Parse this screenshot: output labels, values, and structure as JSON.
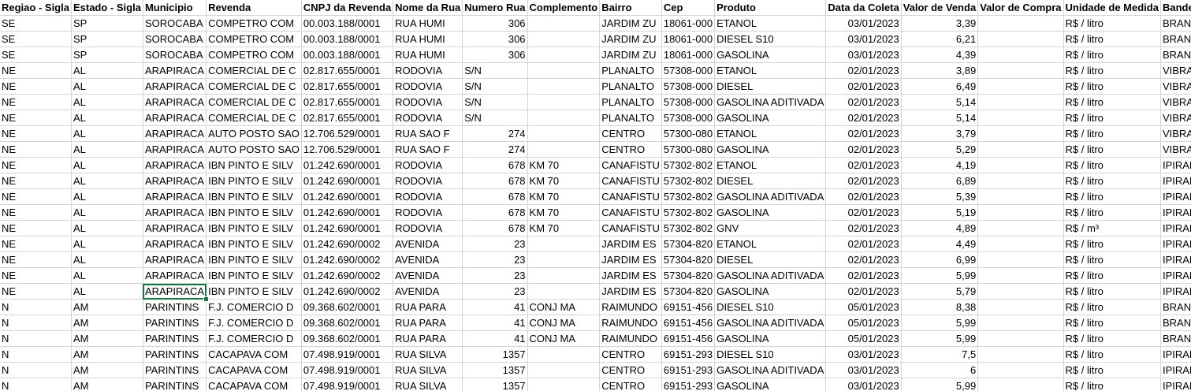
{
  "columns": [
    {
      "key": "regiao",
      "label": "Regiao - Sigla"
    },
    {
      "key": "estado",
      "label": "Estado - Sigla"
    },
    {
      "key": "municipio",
      "label": "Municipio"
    },
    {
      "key": "revenda",
      "label": "Revenda"
    },
    {
      "key": "cnpj",
      "label": "CNPJ da Revenda"
    },
    {
      "key": "nome_rua",
      "label": "Nome da Rua"
    },
    {
      "key": "numero",
      "label": "Numero Rua"
    },
    {
      "key": "complemento",
      "label": "Complemento"
    },
    {
      "key": "bairro",
      "label": "Bairro"
    },
    {
      "key": "cep",
      "label": "Cep"
    },
    {
      "key": "produto",
      "label": "Produto"
    },
    {
      "key": "data",
      "label": "Data da Coleta"
    },
    {
      "key": "venda",
      "label": "Valor de Venda"
    },
    {
      "key": "compra",
      "label": "Valor de Compra"
    },
    {
      "key": "unidade",
      "label": "Unidade de Medida"
    },
    {
      "key": "bandeira",
      "label": "Bandeira"
    }
  ],
  "rows": [
    [
      "SE",
      "SP",
      "SOROCABA",
      "COMPETRO COM",
      "00.003.188/0001",
      "RUA HUMI",
      "306",
      "",
      "JARDIM ZU",
      "18061-000",
      "ETANOL",
      "03/01/2023",
      "3,39",
      "",
      "R$ / litro",
      "BRANCA"
    ],
    [
      "SE",
      "SP",
      "SOROCABA",
      "COMPETRO COM",
      "00.003.188/0001",
      "RUA HUMI",
      "306",
      "",
      "JARDIM ZU",
      "18061-000",
      "DIESEL S10",
      "03/01/2023",
      "6,21",
      "",
      "R$ / litro",
      "BRANCA"
    ],
    [
      "SE",
      "SP",
      "SOROCABA",
      "COMPETRO COM",
      "00.003.188/0001",
      "RUA HUMI",
      "306",
      "",
      "JARDIM ZU",
      "18061-000",
      "GASOLINA",
      "03/01/2023",
      "4,39",
      "",
      "R$ / litro",
      "BRANCA"
    ],
    [
      "NE",
      "AL",
      "ARAPIRACA",
      "COMERCIAL DE C",
      "02.817.655/0001",
      "RODOVIA",
      "S/N",
      "",
      "PLANALTO",
      "57308-000",
      "ETANOL",
      "02/01/2023",
      "3,89",
      "",
      "R$ / litro",
      "VIBRA ENERGIA"
    ],
    [
      "NE",
      "AL",
      "ARAPIRACA",
      "COMERCIAL DE C",
      "02.817.655/0001",
      "RODOVIA",
      "S/N",
      "",
      "PLANALTO",
      "57308-000",
      "DIESEL",
      "02/01/2023",
      "6,49",
      "",
      "R$ / litro",
      "VIBRA ENERGIA"
    ],
    [
      "NE",
      "AL",
      "ARAPIRACA",
      "COMERCIAL DE C",
      "02.817.655/0001",
      "RODOVIA",
      "S/N",
      "",
      "PLANALTO",
      "57308-000",
      "GASOLINA ADITIVADA",
      "02/01/2023",
      "5,14",
      "",
      "R$ / litro",
      "VIBRA ENERGIA"
    ],
    [
      "NE",
      "AL",
      "ARAPIRACA",
      "COMERCIAL DE C",
      "02.817.655/0001",
      "RODOVIA",
      "S/N",
      "",
      "PLANALTO",
      "57308-000",
      "GASOLINA",
      "02/01/2023",
      "5,14",
      "",
      "R$ / litro",
      "VIBRA ENERGIA"
    ],
    [
      "NE",
      "AL",
      "ARAPIRACA",
      "AUTO POSTO SAO",
      "12.706.529/0001",
      "RUA SAO F",
      "274",
      "",
      "CENTRO",
      "57300-080",
      "ETANOL",
      "02/01/2023",
      "3,79",
      "",
      "R$ / litro",
      "VIBRA ENERGIA"
    ],
    [
      "NE",
      "AL",
      "ARAPIRACA",
      "AUTO POSTO SAO",
      "12.706.529/0001",
      "RUA SAO F",
      "274",
      "",
      "CENTRO",
      "57300-080",
      "GASOLINA",
      "02/01/2023",
      "5,29",
      "",
      "R$ / litro",
      "VIBRA ENERGIA"
    ],
    [
      "NE",
      "AL",
      "ARAPIRACA",
      "IBN PINTO E SILV",
      "01.242.690/0001",
      "RODOVIA",
      "678",
      "KM  70",
      "CANAFISTU",
      "57302-802",
      "ETANOL",
      "02/01/2023",
      "4,19",
      "",
      "R$ / litro",
      "IPIRANGA"
    ],
    [
      "NE",
      "AL",
      "ARAPIRACA",
      "IBN PINTO E SILV",
      "01.242.690/0001",
      "RODOVIA",
      "678",
      "KM  70",
      "CANAFISTU",
      "57302-802",
      "DIESEL",
      "02/01/2023",
      "6,89",
      "",
      "R$ / litro",
      "IPIRANGA"
    ],
    [
      "NE",
      "AL",
      "ARAPIRACA",
      "IBN PINTO E SILV",
      "01.242.690/0001",
      "RODOVIA",
      "678",
      "KM  70",
      "CANAFISTU",
      "57302-802",
      "GASOLINA ADITIVADA",
      "02/01/2023",
      "5,39",
      "",
      "R$ / litro",
      "IPIRANGA"
    ],
    [
      "NE",
      "AL",
      "ARAPIRACA",
      "IBN PINTO E SILV",
      "01.242.690/0001",
      "RODOVIA",
      "678",
      "KM  70",
      "CANAFISTU",
      "57302-802",
      "GASOLINA",
      "02/01/2023",
      "5,19",
      "",
      "R$ / litro",
      "IPIRANGA"
    ],
    [
      "NE",
      "AL",
      "ARAPIRACA",
      "IBN PINTO E SILV",
      "01.242.690/0001",
      "RODOVIA",
      "678",
      "KM  70",
      "CANAFISTU",
      "57302-802",
      "GNV",
      "02/01/2023",
      "4,89",
      "",
      "R$ / m³",
      "IPIRANGA"
    ],
    [
      "NE",
      "AL",
      "ARAPIRACA",
      "IBN PINTO E SILV",
      "01.242.690/0002",
      "AVENIDA",
      "23",
      "",
      "JARDIM ES",
      "57304-820",
      "ETANOL",
      "02/01/2023",
      "4,49",
      "",
      "R$ / litro",
      "IPIRANGA"
    ],
    [
      "NE",
      "AL",
      "ARAPIRACA",
      "IBN PINTO E SILV",
      "01.242.690/0002",
      "AVENIDA",
      "23",
      "",
      "JARDIM ES",
      "57304-820",
      "DIESEL",
      "02/01/2023",
      "6,99",
      "",
      "R$ / litro",
      "IPIRANGA"
    ],
    [
      "NE",
      "AL",
      "ARAPIRACA",
      "IBN PINTO E SILV",
      "01.242.690/0002",
      "AVENIDA",
      "23",
      "",
      "JARDIM ES",
      "57304-820",
      "GASOLINA ADITIVADA",
      "02/01/2023",
      "5,99",
      "",
      "R$ / litro",
      "IPIRANGA"
    ],
    [
      "NE",
      "AL",
      "ARAPIRACA",
      "IBN PINTO E SILV",
      "01.242.690/0002",
      "AVENIDA",
      "23",
      "",
      "JARDIM ES",
      "57304-820",
      "GASOLINA",
      "02/01/2023",
      "5,79",
      "",
      "R$ / litro",
      "IPIRANGA"
    ],
    [
      "N",
      "AM",
      "PARINTINS",
      "F.J. COMERCIO D",
      "09.368.602/0001",
      "RUA PARA",
      "41",
      "CONJ  MA",
      "RAIMUNDO",
      "69151-456",
      "DIESEL S10",
      "05/01/2023",
      "8,38",
      "",
      "R$ / litro",
      "BRANCA"
    ],
    [
      "N",
      "AM",
      "PARINTINS",
      "F.J. COMERCIO D",
      "09.368.602/0001",
      "RUA PARA",
      "41",
      "CONJ  MA",
      "RAIMUNDO",
      "69151-456",
      "GASOLINA ADITIVADA",
      "05/01/2023",
      "5,99",
      "",
      "R$ / litro",
      "BRANCA"
    ],
    [
      "N",
      "AM",
      "PARINTINS",
      "F.J. COMERCIO D",
      "09.368.602/0001",
      "RUA PARA",
      "41",
      "CONJ  MA",
      "RAIMUNDO",
      "69151-456",
      "GASOLINA",
      "05/01/2023",
      "5,99",
      "",
      "R$ / litro",
      "BRANCA"
    ],
    [
      "N",
      "AM",
      "PARINTINS",
      "CACAPAVA COM",
      "07.498.919/0001",
      "RUA SILVA",
      "1357",
      "",
      "CENTRO",
      "69151-293",
      "DIESEL S10",
      "03/01/2023",
      "7,5",
      "",
      "R$ / litro",
      "IPIRANGA"
    ],
    [
      "N",
      "AM",
      "PARINTINS",
      "CACAPAVA COM",
      "07.498.919/0001",
      "RUA SILVA",
      "1357",
      "",
      "CENTRO",
      "69151-293",
      "GASOLINA ADITIVADA",
      "03/01/2023",
      "6",
      "",
      "R$ / litro",
      "IPIRANGA"
    ],
    [
      "N",
      "AM",
      "PARINTINS",
      "CACAPAVA COM",
      "07.498.919/0001",
      "RUA SILVA",
      "1357",
      "",
      "CENTRO",
      "69151-293",
      "GASOLINA",
      "03/01/2023",
      "5,99",
      "",
      "R$ / litro",
      "IPIRANGA"
    ]
  ],
  "selected_cell": {
    "row": 17,
    "col": 2
  },
  "accent_color": "#107c41"
}
